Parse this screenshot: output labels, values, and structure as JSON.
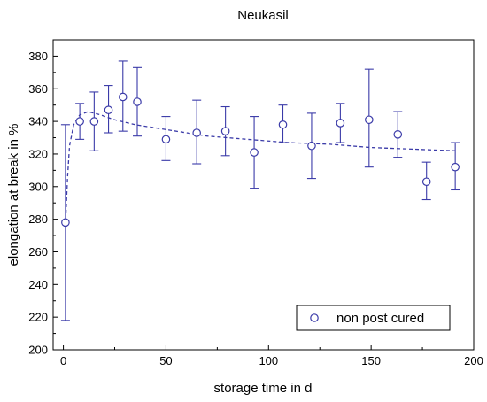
{
  "chart_data": {
    "type": "scatter",
    "title": "Neukasil",
    "xlabel": "storage time in d",
    "ylabel": "elongation at break in %",
    "xlim": [
      -5,
      200
    ],
    "ylim": [
      200,
      390
    ],
    "xticks": [
      0,
      50,
      100,
      150,
      200
    ],
    "yticks": [
      200,
      220,
      240,
      260,
      280,
      300,
      320,
      340,
      360,
      380
    ],
    "grid": false,
    "legend_position": "bottom-right",
    "color": "#3a3aa8",
    "series": [
      {
        "name": "non post cured",
        "marker": "open-circle",
        "points": [
          {
            "x": 1,
            "y": 278,
            "err_low": 218,
            "err_high": 338
          },
          {
            "x": 8,
            "y": 340,
            "err_low": 329,
            "err_high": 351
          },
          {
            "x": 15,
            "y": 340,
            "err_low": 322,
            "err_high": 358
          },
          {
            "x": 22,
            "y": 347,
            "err_low": 333,
            "err_high": 362
          },
          {
            "x": 29,
            "y": 355,
            "err_low": 334,
            "err_high": 377
          },
          {
            "x": 36,
            "y": 352,
            "err_low": 331,
            "err_high": 373
          },
          {
            "x": 50,
            "y": 329,
            "err_low": 316,
            "err_high": 343
          },
          {
            "x": 65,
            "y": 333,
            "err_low": 314,
            "err_high": 353
          },
          {
            "x": 79,
            "y": 334,
            "err_low": 319,
            "err_high": 349
          },
          {
            "x": 93,
            "y": 321,
            "err_low": 299,
            "err_high": 343
          },
          {
            "x": 107,
            "y": 338,
            "err_low": 327,
            "err_high": 350
          },
          {
            "x": 121,
            "y": 325,
            "err_low": 305,
            "err_high": 345
          },
          {
            "x": 135,
            "y": 339,
            "err_low": 327,
            "err_high": 351
          },
          {
            "x": 149,
            "y": 341,
            "err_low": 312,
            "err_high": 372
          },
          {
            "x": 163,
            "y": 332,
            "err_low": 318,
            "err_high": 346
          },
          {
            "x": 177,
            "y": 303,
            "err_low": 292,
            "err_high": 315
          },
          {
            "x": 191,
            "y": 312,
            "err_low": 298,
            "err_high": 327
          }
        ]
      }
    ],
    "fit_curve": {
      "style": "dashed",
      "points": [
        {
          "x": 1,
          "y": 276
        },
        {
          "x": 2,
          "y": 305
        },
        {
          "x": 3,
          "y": 325
        },
        {
          "x": 5,
          "y": 338
        },
        {
          "x": 8,
          "y": 344
        },
        {
          "x": 12,
          "y": 346
        },
        {
          "x": 18,
          "y": 344
        },
        {
          "x": 25,
          "y": 341
        },
        {
          "x": 35,
          "y": 338
        },
        {
          "x": 50,
          "y": 335
        },
        {
          "x": 70,
          "y": 331
        },
        {
          "x": 90,
          "y": 329
        },
        {
          "x": 110,
          "y": 327
        },
        {
          "x": 130,
          "y": 326
        },
        {
          "x": 150,
          "y": 324
        },
        {
          "x": 170,
          "y": 323
        },
        {
          "x": 191,
          "y": 322
        }
      ]
    }
  }
}
